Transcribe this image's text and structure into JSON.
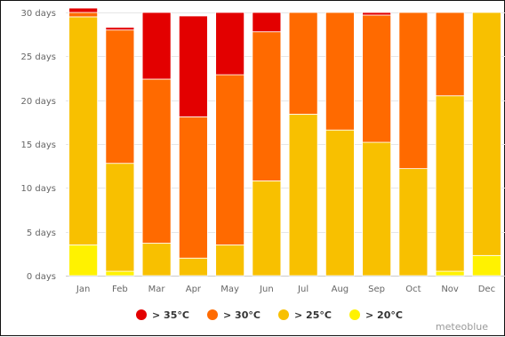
{
  "chart_data": {
    "type": "bar",
    "stacked": true,
    "categories": [
      "Jan",
      "Feb",
      "Mar",
      "Apr",
      "May",
      "Jun",
      "Jul",
      "Aug",
      "Sep",
      "Oct",
      "Nov",
      "Dec"
    ],
    "ylim": [
      0,
      30
    ],
    "yticks": [
      {
        "value": 0,
        "label": "0 days"
      },
      {
        "value": 5,
        "label": "5 days"
      },
      {
        "value": 10,
        "label": "10 days"
      },
      {
        "value": 15,
        "label": "15 days"
      },
      {
        "value": 20,
        "label": "20 days"
      },
      {
        "value": 25,
        "label": "25 days"
      },
      {
        "value": 30,
        "label": "30 days"
      }
    ],
    "grid": true,
    "legend_position": "bottom-center",
    "series": [
      {
        "name": "> 20°C",
        "color": "#fff200",
        "values": [
          3.5,
          0.5,
          0,
          0,
          0,
          0,
          0,
          0,
          0,
          0,
          0.5,
          2.3
        ]
      },
      {
        "name": "> 25°C",
        "color": "#f8c000",
        "values": [
          26.0,
          12.3,
          3.7,
          2.0,
          3.5,
          10.8,
          18.4,
          16.6,
          15.2,
          12.2,
          20.0,
          27.7
        ]
      },
      {
        "name": "> 30°C",
        "color": "#ff6a00",
        "values": [
          0.5,
          15.2,
          18.7,
          16.1,
          19.4,
          17.0,
          11.6,
          13.4,
          14.5,
          17.8,
          9.5,
          0
        ]
      },
      {
        "name": "> 35°C",
        "color": "#e30000",
        "values": [
          0.5,
          0.3,
          7.6,
          11.5,
          7.1,
          2.2,
          0,
          0,
          0.3,
          0,
          0,
          0
        ]
      }
    ],
    "credit": "meteoblue"
  }
}
